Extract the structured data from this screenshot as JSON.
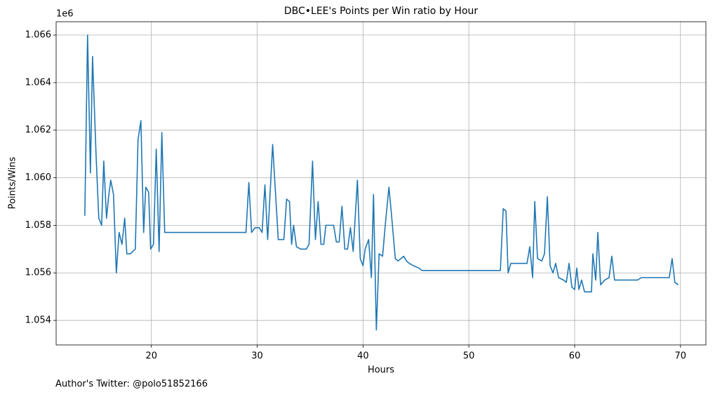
{
  "chart_data": {
    "type": "line",
    "title": "DBC•LEE's Points per Win ratio by Hour",
    "xlabel": "Hours",
    "ylabel": "Points/Wins",
    "y_offset_label": "1e6",
    "footer": "Author's Twitter: @polo51852166",
    "grid": true,
    "xlim": [
      11.0,
      72.4
    ],
    "ylim": [
      1.05297,
      1.06656
    ],
    "xticks": [
      20,
      30,
      40,
      50,
      60,
      70
    ],
    "yticks": [
      1.054,
      1.056,
      1.058,
      {
        "value": 1.06,
        "label": "1.060"
      },
      1.062,
      1.064,
      1.066
    ],
    "x": [
      13.71,
      13.97,
      14.24,
      14.44,
      14.77,
      15.03,
      15.3,
      15.5,
      15.76,
      15.96,
      16.16,
      16.42,
      16.69,
      16.95,
      17.22,
      17.48,
      17.68,
      18.01,
      18.48,
      18.74,
      19.01,
      19.27,
      19.47,
      19.74,
      19.93,
      20.2,
      20.46,
      20.73,
      20.99,
      21.26,
      28.94,
      29.21,
      29.47,
      29.8,
      30.2,
      30.46,
      30.73,
      30.99,
      31.46,
      31.99,
      32.52,
      32.78,
      33.05,
      33.25,
      33.44,
      33.71,
      34.11,
      34.64,
      34.9,
      35.23,
      35.5,
      35.76,
      36.03,
      36.29,
      36.49,
      37.22,
      37.48,
      37.75,
      38.01,
      38.28,
      38.54,
      38.81,
      39.07,
      39.47,
      39.74,
      40.0,
      40.2,
      40.53,
      40.79,
      40.99,
      41.26,
      41.52,
      41.85,
      42.12,
      42.45,
      42.72,
      43.05,
      43.31,
      43.58,
      43.84,
      44.11,
      44.37,
      44.77,
      45.3,
      45.56,
      52.98,
      53.25,
      53.51,
      53.71,
      53.97,
      55.5,
      55.76,
      56.03,
      56.23,
      56.49,
      56.89,
      57.15,
      57.42,
      57.68,
      57.95,
      58.21,
      58.48,
      58.94,
      59.21,
      59.47,
      59.74,
      60.0,
      60.2,
      60.4,
      60.66,
      60.93,
      61.59,
      61.72,
      61.99,
      62.19,
      62.45,
      62.85,
      63.25,
      63.51,
      63.77,
      65.96,
      66.29,
      68.94,
      69.21,
      69.47,
      69.8
    ],
    "series": [
      {
        "name": "Points/Wins",
        "color": "#1f77b4",
        "values": [
          1.0584,
          1.066,
          1.0602,
          1.0651,
          1.061,
          1.0583,
          1.058,
          1.0607,
          1.0583,
          1.0592,
          1.0599,
          1.0593,
          1.056,
          1.0577,
          1.0572,
          1.0583,
          1.0568,
          1.0568,
          1.057,
          1.0616,
          1.0624,
          1.0577,
          1.0596,
          1.0594,
          1.057,
          1.0572,
          1.0612,
          1.0569,
          1.0619,
          1.0577,
          1.0577,
          1.0598,
          1.0577,
          1.0579,
          1.0579,
          1.0577,
          1.0597,
          1.0574,
          1.0614,
          1.0574,
          1.0574,
          1.0591,
          1.059,
          1.0572,
          1.058,
          1.0571,
          1.057,
          1.057,
          1.0572,
          1.0607,
          1.0574,
          1.059,
          1.0572,
          1.0572,
          1.058,
          1.058,
          1.0573,
          1.0573,
          1.0588,
          1.057,
          1.057,
          1.0579,
          1.0569,
          1.0599,
          1.0566,
          1.0563,
          1.057,
          1.0574,
          1.0558,
          1.0593,
          1.0536,
          1.0568,
          1.0567,
          1.0581,
          1.0596,
          1.0583,
          1.0566,
          1.0565,
          1.0566,
          1.0567,
          1.0565,
          1.0564,
          1.0563,
          1.0562,
          1.0561,
          1.0561,
          1.0587,
          1.0586,
          1.056,
          1.0564,
          1.0564,
          1.0571,
          1.0558,
          1.059,
          1.0566,
          1.0565,
          1.0568,
          1.0592,
          1.0563,
          1.056,
          1.0564,
          1.0558,
          1.0557,
          1.0556,
          1.0564,
          1.0554,
          1.0553,
          1.0562,
          1.0553,
          1.0557,
          1.0552,
          1.0552,
          1.0568,
          1.0557,
          1.0577,
          1.0555,
          1.0557,
          1.0558,
          1.0567,
          1.0557,
          1.0557,
          1.0558,
          1.0558,
          1.0566,
          1.0556,
          1.0555
        ]
      }
    ]
  }
}
